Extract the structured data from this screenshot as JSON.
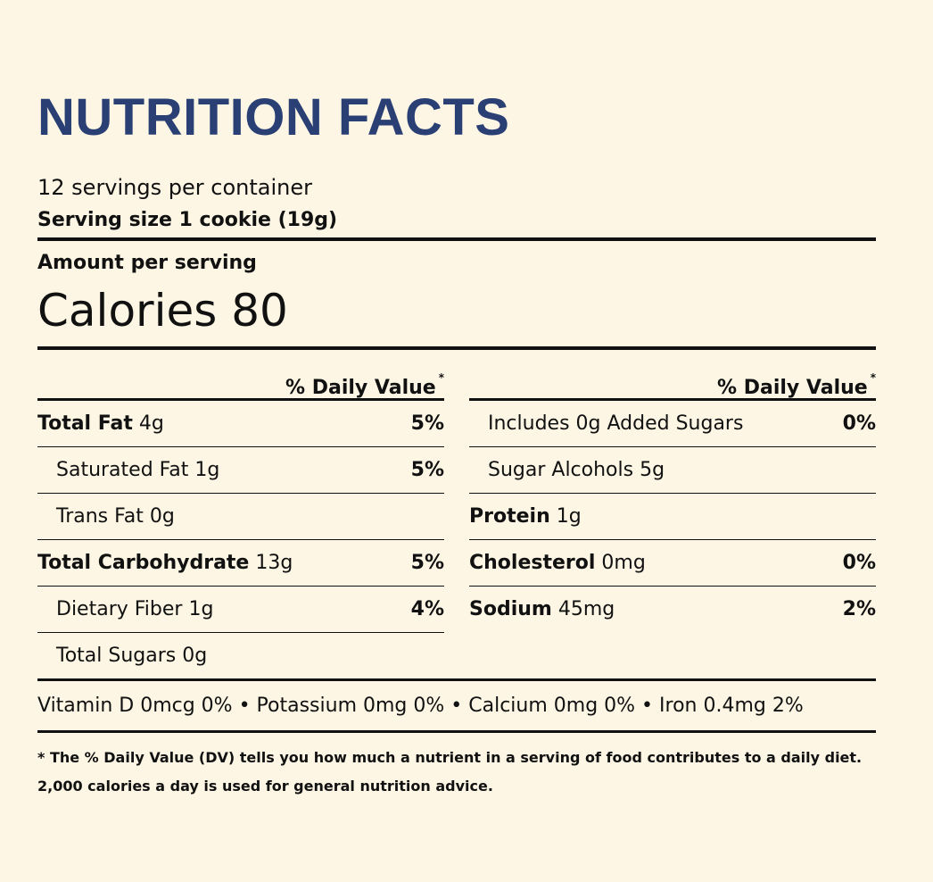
{
  "title": "NUTRITION FACTS",
  "servings_per_container": "12 servings per container",
  "serving_size": "Serving size 1 cookie (19g)",
  "amount_per_serving": "Amount per serving",
  "calories": "Calories 80",
  "daily_value_header": "% Daily Value",
  "daily_value_marker": "*",
  "left_column": [
    {
      "name": "Total Fat",
      "amount": "4g",
      "dv": "5%",
      "bold": true,
      "indent": false
    },
    {
      "name": "Saturated Fat",
      "amount": "1g",
      "dv": "5%",
      "bold": false,
      "indent": true
    },
    {
      "name": "Trans Fat",
      "amount": "0g",
      "dv": "",
      "bold": false,
      "indent": true
    },
    {
      "name": "Total Carbohydrate",
      "amount": "13g",
      "dv": "5%",
      "bold": true,
      "indent": false
    },
    {
      "name": "Dietary Fiber",
      "amount": "1g",
      "dv": "4%",
      "bold": false,
      "indent": true
    },
    {
      "name": "Total Sugars",
      "amount": "0g",
      "dv": "",
      "bold": false,
      "indent": true
    }
  ],
  "right_column": [
    {
      "name": "Includes 0g Added Sugars",
      "amount": "",
      "dv": "0%",
      "bold": false,
      "indent": true
    },
    {
      "name": "Sugar Alcohols",
      "amount": "5g",
      "dv": "",
      "bold": false,
      "indent": true
    },
    {
      "name": "Protein",
      "amount": "1g",
      "dv": "",
      "bold": true,
      "indent": false
    },
    {
      "name": "Cholesterol",
      "amount": "0mg",
      "dv": "0%",
      "bold": true,
      "indent": false
    },
    {
      "name": "Sodium",
      "amount": "45mg",
      "dv": "2%",
      "bold": true,
      "indent": false
    }
  ],
  "vitamins_line": "Vitamin D 0mcg 0% • Potassium 0mg 0% • Calcium 0mg 0% • Iron 0.4mg 2%",
  "footnote_line1": "* The % Daily Value (DV) tells you how much a nutrient in a serving of food contributes to a daily diet.",
  "footnote_line2": "2,000 calories a day is used for general nutrition advice.",
  "colors": {
    "background": "#fdf6e4",
    "title": "#2a4075",
    "text": "#111111"
  }
}
